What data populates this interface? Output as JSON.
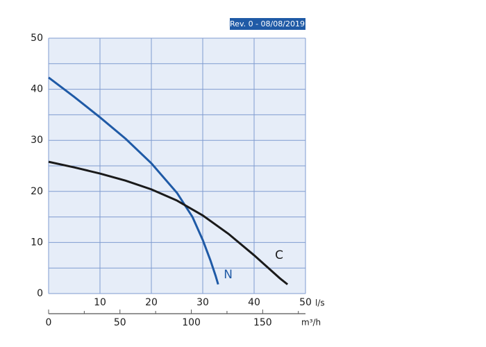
{
  "chart_data": {
    "type": "line",
    "badge": "Rev. 0 - 08/08/2019",
    "xlabel": "l/s",
    "x2label": "m³/h",
    "xlim": [
      0,
      50
    ],
    "xticks": [
      10,
      20,
      30,
      40,
      50
    ],
    "ylim": [
      0,
      50
    ],
    "yticks": [
      0,
      10,
      20,
      30,
      40,
      50
    ],
    "yminor": [
      5,
      15,
      25,
      35,
      45
    ],
    "x2lim": [
      0,
      180
    ],
    "x2ticks": [
      0,
      50,
      100,
      150
    ],
    "x2minor": [
      25,
      75,
      125,
      175
    ],
    "grid": true,
    "background": "#e6edf8",
    "series": [
      {
        "name": "N",
        "color": "#1f5aa6",
        "x": [
          0,
          5,
          10,
          15,
          20,
          25,
          28,
          30,
          31.5,
          32.5,
          33
        ],
        "values": [
          42.3,
          38.5,
          34.5,
          30.3,
          25.5,
          19.7,
          15,
          10.5,
          6.5,
          3.5,
          1.8
        ]
      },
      {
        "name": "C",
        "color": "#1a1a1a",
        "x": [
          0,
          5,
          10,
          15,
          20,
          25,
          30,
          35,
          40,
          45,
          46.5
        ],
        "values": [
          25.8,
          24.7,
          23.5,
          22.1,
          20.4,
          18.2,
          15.3,
          11.7,
          7.5,
          3,
          1.8
        ]
      }
    ]
  }
}
